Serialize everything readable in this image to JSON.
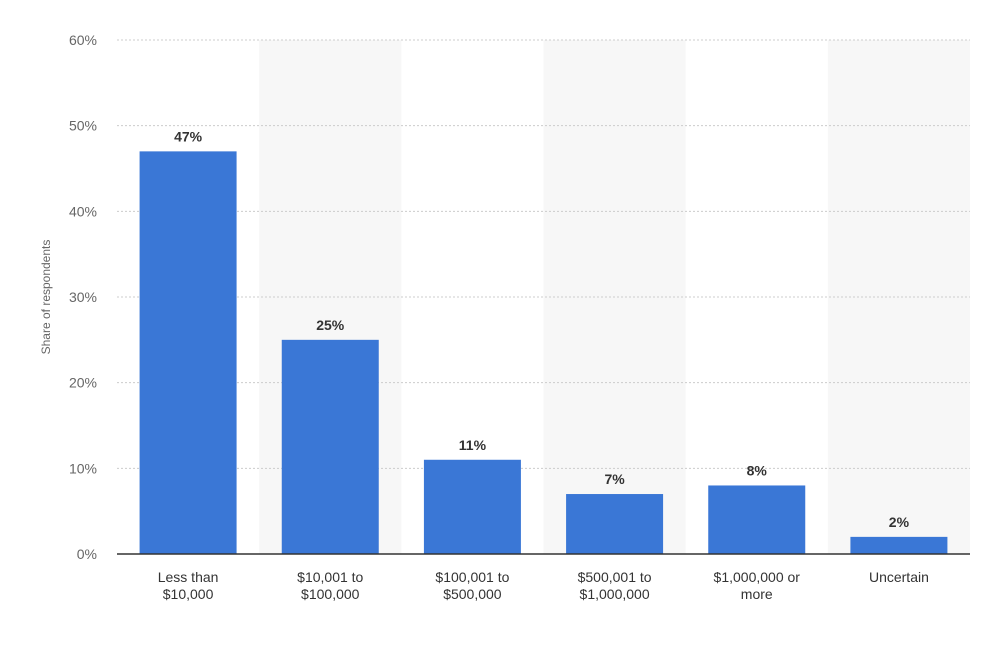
{
  "chart_data": {
    "type": "bar",
    "categories": [
      [
        "Less than",
        "$10,000"
      ],
      [
        "$10,001 to",
        "$100,000"
      ],
      [
        "$100,001 to",
        "$500,000"
      ],
      [
        "$500,001 to",
        "$1,000,000"
      ],
      [
        "$1,000,000 or",
        "more"
      ],
      [
        "Uncertain"
      ]
    ],
    "values": [
      47,
      25,
      11,
      7,
      8,
      2
    ],
    "value_labels": [
      "47%",
      "25%",
      "11%",
      "7%",
      "8%",
      "2%"
    ],
    "ylabel": "Share of respondents",
    "ylim": [
      0,
      60
    ],
    "yticks": [
      0,
      10,
      20,
      30,
      40,
      50,
      60
    ],
    "ytick_labels": [
      "0%",
      "10%",
      "20%",
      "30%",
      "40%",
      "50%",
      "60%"
    ],
    "grid": true,
    "colors": {
      "bar": "#3a77d6",
      "band": "#f7f7f7",
      "grid": "#cccccc",
      "axis": "#333333"
    }
  }
}
